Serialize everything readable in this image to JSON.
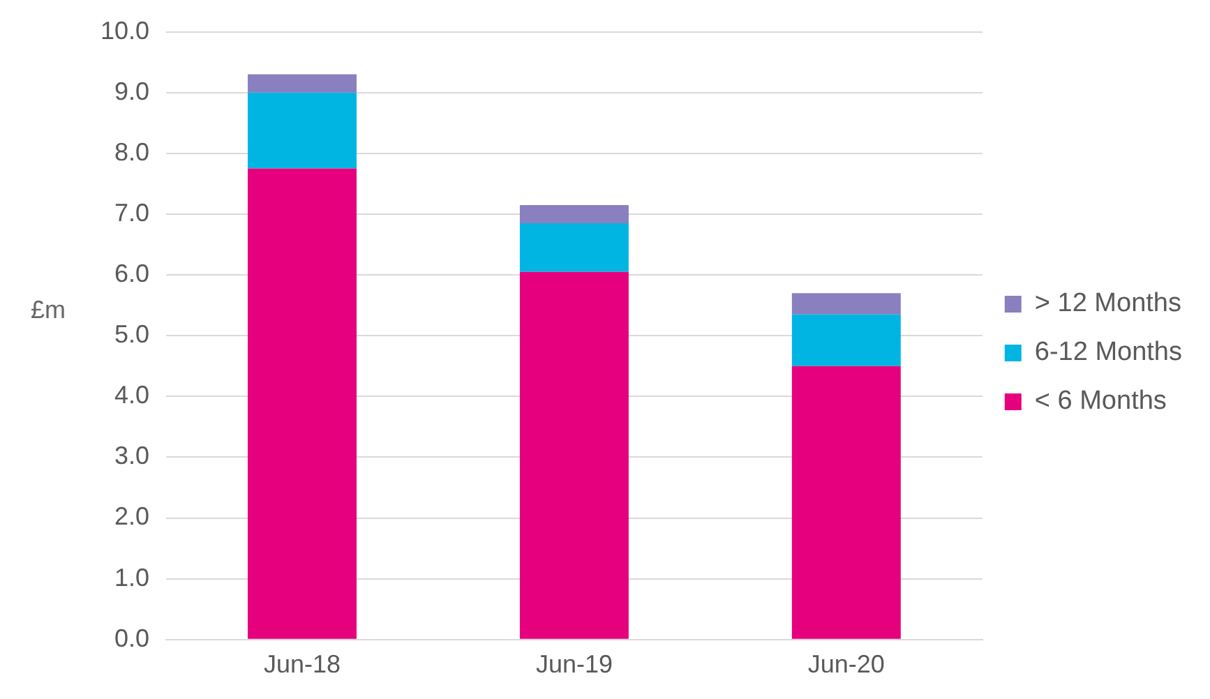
{
  "chart_data": {
    "type": "bar",
    "stacked": true,
    "ylabel": "£m",
    "categories": [
      "Jun-18",
      "Jun-19",
      "Jun-20"
    ],
    "series": [
      {
        "name": "< 6 Months",
        "color": "#e6007e",
        "values": [
          7.75,
          6.05,
          4.5
        ]
      },
      {
        "name": "6-12 Months",
        "color": "#00b5e2",
        "values": [
          1.25,
          0.8,
          0.85
        ]
      },
      {
        "name": "> 12 Months",
        "color": "#8a7fbf",
        "values": [
          0.3,
          0.3,
          0.35
        ]
      }
    ],
    "ylim": [
      0,
      10
    ],
    "yticks": [
      {
        "value": 0,
        "label": "0.0"
      },
      {
        "value": 1,
        "label": "1.0"
      },
      {
        "value": 2,
        "label": "2.0"
      },
      {
        "value": 3,
        "label": "3.0"
      },
      {
        "value": 4,
        "label": "4.0"
      },
      {
        "value": 5,
        "label": "5.0"
      },
      {
        "value": 6,
        "label": "6.0"
      },
      {
        "value": 7,
        "label": "7.0"
      },
      {
        "value": 8,
        "label": "8.0"
      },
      {
        "value": 9,
        "label": "9.0"
      },
      {
        "value": 10,
        "label": "10.0"
      }
    ],
    "grid": "y",
    "legend": "right"
  }
}
